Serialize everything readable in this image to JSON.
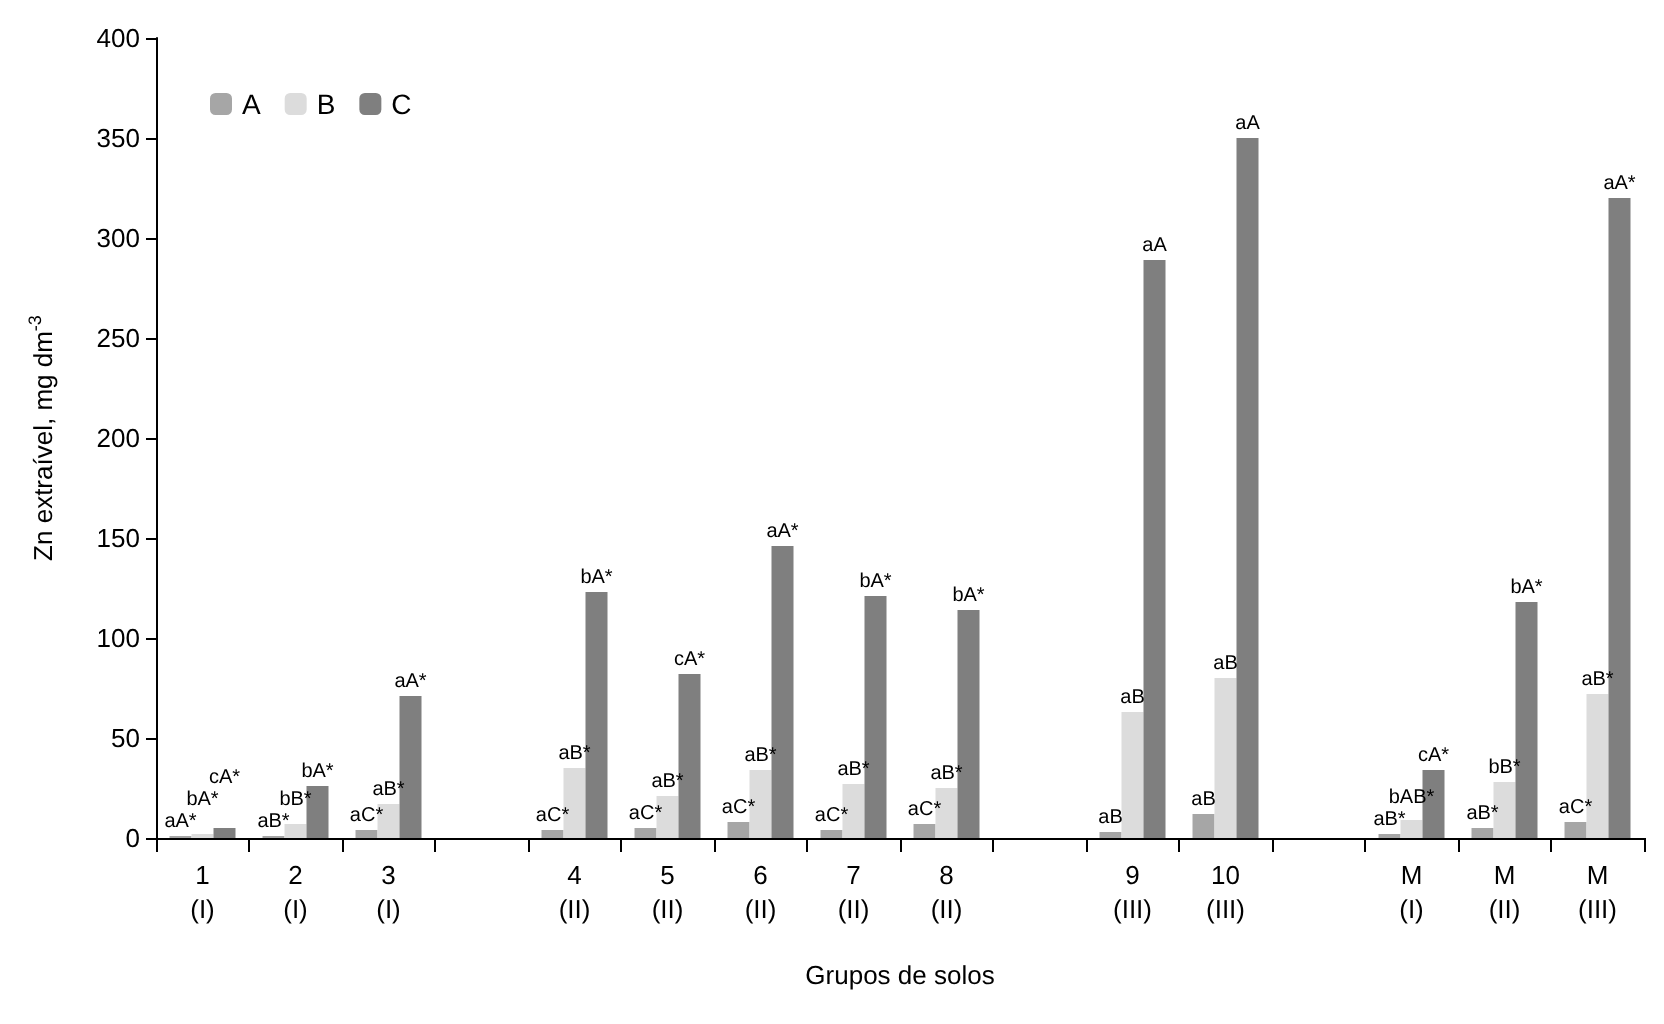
{
  "chart_data": {
    "type": "bar",
    "xlabel": "Grupos de solos",
    "ylabel": "Zn extraível, mg dm$^{-3}$",
    "categories": [
      "1\n(I)",
      "2\n(I)",
      "3\n(I)",
      null,
      "4\n(II)",
      "5\n(II)",
      "6\n(II)",
      "7\n(II)",
      "8\n(II)",
      null,
      "9\n(III)",
      "10\n(III)",
      null,
      "M\n(I)",
      "M\n(II)",
      "M\n(III)"
    ],
    "series": [
      {
        "name": "A",
        "color": "#a6a6a6",
        "values": [
          1,
          1,
          4,
          null,
          4,
          5,
          8,
          4,
          7,
          null,
          3,
          12,
          null,
          2,
          5,
          8
        ],
        "value_labels": [
          "aA*",
          "aB*",
          "aC*",
          null,
          "aC*",
          "aC*",
          "aC*",
          "aC*",
          "aC*",
          null,
          "aB",
          "aB",
          null,
          "aB*",
          "aB*",
          "aC*"
        ]
      },
      {
        "name": "B",
        "color": "#dcdcdc",
        "values": [
          2,
          7,
          17,
          null,
          35,
          21,
          34,
          27,
          25,
          null,
          63,
          80,
          null,
          9,
          28,
          72
        ],
        "value_labels": [
          "bA*",
          "bB*",
          "aB*",
          null,
          "aB*",
          "aB*",
          "aB*",
          "aB*",
          "aB*",
          null,
          "aB",
          "aB",
          null,
          "bAB*",
          "bB*",
          "aB*"
        ]
      },
      {
        "name": "C",
        "color": "#7f7f7f",
        "values": [
          5,
          26,
          71,
          null,
          123,
          82,
          146,
          121,
          114,
          null,
          289,
          350,
          null,
          34,
          118,
          320
        ],
        "value_labels": [
          "cA*",
          "bA*",
          "aA*",
          null,
          "bA*",
          "cA*",
          "aA*",
          "bA*",
          "bA*",
          null,
          "aA",
          "aA",
          null,
          "cA*",
          "bA*",
          "aA*"
        ]
      }
    ],
    "ylim": [
      0,
      400
    ],
    "yticks": [
      0,
      50,
      100,
      150,
      200,
      250,
      300,
      350,
      400
    ],
    "grid": false,
    "legend": "top left"
  }
}
